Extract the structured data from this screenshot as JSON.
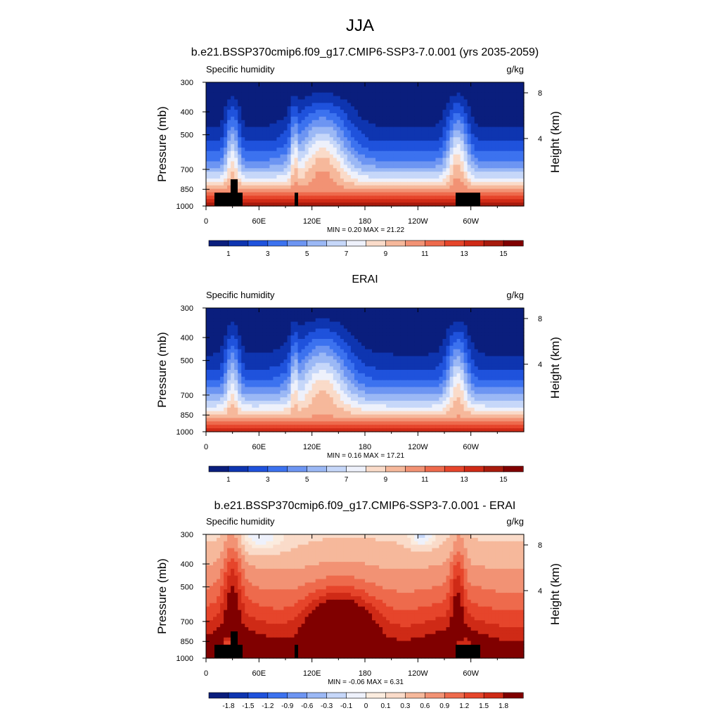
{
  "figure_title": "JJA",
  "chart_data": [
    {
      "type": "heatmap",
      "title": "b.e21.BSSP370cmip6.f09_g17.CMIP6-SSP3-7.0.001 (yrs 2035-2059)",
      "left_label": "Specific humidity",
      "units": "g/kg",
      "ylabel": "Pressure (mb)",
      "y2label": "Height (km)",
      "yticks": [
        "300",
        "400",
        "500",
        "700",
        "850",
        "1000"
      ],
      "y2ticks": [
        "8",
        "4"
      ],
      "xticks": [
        "0",
        "60E",
        "120E",
        "180",
        "120W",
        "60W"
      ],
      "stats": "MIN =   0.20  MAX =  21.22",
      "colorbar_labels": [
        "1",
        "3",
        "5",
        "7",
        "9",
        "11",
        "13",
        "15"
      ],
      "colorbar_colors": [
        "#0a1e7d",
        "#0e35b0",
        "#1f52dc",
        "#3c72ef",
        "#6d95f2",
        "#9bb8f5",
        "#c6d7f9",
        "#eef1fb",
        "#fadbc9",
        "#f6b89b",
        "#f29274",
        "#ee6a4c",
        "#e6452b",
        "#cf2a16",
        "#a81b0d",
        "#800000"
      ],
      "ylim_mb": [
        1000,
        300
      ],
      "field": "specific humidity zonal-pressure cross section; moist lower troposphere (>15 g/kg below ~900 mb), dry upper levels (<1 g/kg near 300 mb); moist tongues near 30E, 120E-150E and 80W"
    },
    {
      "type": "heatmap",
      "title": "ERAI",
      "left_label": "Specific humidity",
      "units": "g/kg",
      "ylabel": "Pressure (mb)",
      "y2label": "Height (km)",
      "yticks": [
        "300",
        "400",
        "500",
        "700",
        "850",
        "1000"
      ],
      "y2ticks": [
        "8",
        "4"
      ],
      "xticks": [
        "0",
        "60E",
        "120E",
        "180",
        "120W",
        "60W"
      ],
      "stats": "MIN =   0.16  MAX =  17.21",
      "colorbar_labels": [
        "1",
        "3",
        "5",
        "7",
        "9",
        "11",
        "13",
        "15"
      ],
      "colorbar_colors": [
        "#0a1e7d",
        "#0e35b0",
        "#1f52dc",
        "#3c72ef",
        "#6d95f2",
        "#9bb8f5",
        "#c6d7f9",
        "#eef1fb",
        "#fadbc9",
        "#f6b89b",
        "#f29274",
        "#ee6a4c",
        "#e6452b",
        "#cf2a16",
        "#a81b0d",
        "#800000"
      ],
      "ylim_mb": [
        1000,
        300
      ]
    },
    {
      "type": "heatmap",
      "title": "b.e21.BSSP370cmip6.f09_g17.CMIP6-SSP3-7.0.001 - ERAI",
      "left_label": "Specific humidity",
      "units": "g/kg",
      "ylabel": "Pressure (mb)",
      "y2label": "Height (km)",
      "yticks": [
        "300",
        "400",
        "500",
        "700",
        "850",
        "1000"
      ],
      "y2ticks": [
        "8",
        "4"
      ],
      "xticks": [
        "0",
        "60E",
        "120E",
        "180",
        "120W",
        "60W"
      ],
      "stats": "MIN =  -0.06  MAX =   6.31",
      "colorbar_labels": [
        "-1.8",
        "-1.5",
        "-1.2",
        "-0.9",
        "-0.6",
        "-0.3",
        "-0.1",
        "0",
        "0.1",
        "0.3",
        "0.6",
        "0.9",
        "1.2",
        "1.5",
        "1.8"
      ],
      "colorbar_colors": [
        "#0a1e7d",
        "#0e35b0",
        "#1f52dc",
        "#3c72ef",
        "#6d95f2",
        "#9bb8f5",
        "#c6d7f9",
        "#eef1fb",
        "#fbecdf",
        "#fadbc9",
        "#f6b89b",
        "#f29274",
        "#ee6a4c",
        "#e6452b",
        "#cf2a16",
        "#800000"
      ],
      "ylim_mb": [
        1000,
        300
      ]
    }
  ]
}
